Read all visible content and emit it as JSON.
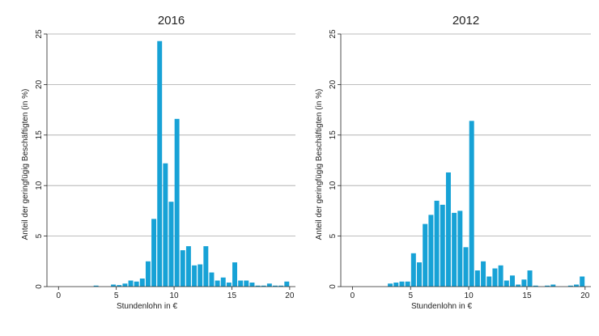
{
  "chart_data": [
    {
      "type": "bar",
      "title": "2016",
      "xlabel": "Stundenlohn in €",
      "ylabel": "Anteil der geringfügig Beschäftigten (in %)",
      "xlim": [
        -1,
        20.5
      ],
      "ylim": [
        0,
        25
      ],
      "xticks": [
        "0",
        "5",
        "10",
        "15",
        "20"
      ],
      "yticks": [
        "0",
        "5",
        "10",
        "15",
        "20",
        "25"
      ],
      "grid": "horizontal",
      "bin_width": 0.5,
      "color": "#17a2d6",
      "x": [
        3.25,
        4.75,
        5.25,
        5.75,
        6.25,
        6.75,
        7.25,
        7.75,
        8.25,
        8.75,
        9.25,
        9.75,
        10.25,
        10.75,
        11.25,
        11.75,
        12.25,
        12.75,
        13.25,
        13.75,
        14.25,
        14.75,
        15.25,
        15.75,
        16.25,
        16.75,
        17.25,
        17.75,
        18.25,
        18.75,
        19.25,
        19.75
      ],
      "values": [
        0.1,
        0.2,
        0.15,
        0.3,
        0.6,
        0.5,
        0.8,
        2.5,
        6.7,
        24.3,
        12.2,
        8.4,
        16.6,
        3.6,
        4.0,
        2.1,
        2.2,
        4.0,
        1.4,
        0.6,
        0.9,
        0.4,
        2.4,
        0.6,
        0.6,
        0.4,
        0.1,
        0.1,
        0.3,
        0.1,
        0.1,
        0.5
      ]
    },
    {
      "type": "bar",
      "title": "2012",
      "xlabel": "Stundenlohn in €",
      "ylabel": "Anteil der geringfügig Beschäftigten (in %)",
      "xlim": [
        -1,
        20.5
      ],
      "ylim": [
        0,
        25
      ],
      "xticks": [
        "0",
        "5",
        "10",
        "15",
        "20"
      ],
      "yticks": [
        "0",
        "5",
        "10",
        "15",
        "20",
        "25"
      ],
      "grid": "horizontal",
      "bin_width": 0.5,
      "color": "#17a2d6",
      "x": [
        3.25,
        3.75,
        4.25,
        4.75,
        5.25,
        5.75,
        6.25,
        6.75,
        7.25,
        7.75,
        8.25,
        8.75,
        9.25,
        9.75,
        10.25,
        10.75,
        11.25,
        11.75,
        12.25,
        12.75,
        13.25,
        13.75,
        14.25,
        14.75,
        15.25,
        15.75,
        16.25,
        16.75,
        17.25,
        17.75,
        18.25,
        18.75,
        19.25,
        19.75
      ],
      "values": [
        0.3,
        0.4,
        0.5,
        0.5,
        3.3,
        2.4,
        6.2,
        7.1,
        8.5,
        8.1,
        11.3,
        7.3,
        7.5,
        3.9,
        16.4,
        1.6,
        2.5,
        1.0,
        1.8,
        2.1,
        0.6,
        1.1,
        0.2,
        0.7,
        1.6,
        0.1,
        0.0,
        0.1,
        0.2,
        0.0,
        0.0,
        0.1,
        0.2,
        1.0
      ]
    }
  ]
}
